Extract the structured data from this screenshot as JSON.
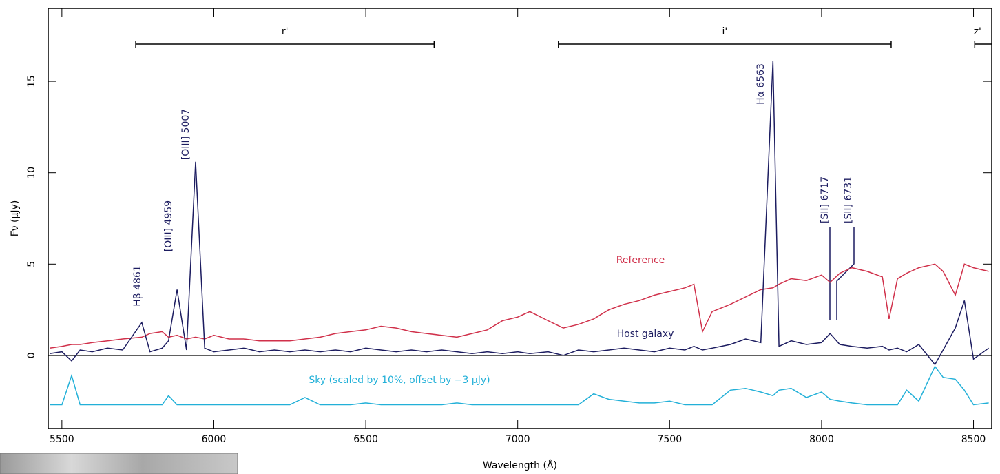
{
  "chart_data": {
    "type": "line",
    "x_label": "Wavelength (Å)",
    "y_label": "Fν (μJy)",
    "xlim": [
      5455,
      8560
    ],
    "ylim": [
      -4,
      19
    ],
    "xticks": [
      5500,
      6000,
      6500,
      7000,
      7500,
      8000,
      8500
    ],
    "yticks": [
      0,
      5,
      10,
      15
    ],
    "x": [
      5460,
      5500,
      5532,
      5560,
      5600,
      5650,
      5700,
      5763,
      5790,
      5830,
      5851,
      5879,
      5910,
      5940,
      5970,
      6000,
      6050,
      6100,
      6150,
      6200,
      6250,
      6300,
      6350,
      6400,
      6450,
      6500,
      6550,
      6600,
      6650,
      6700,
      6750,
      6800,
      6850,
      6900,
      6950,
      7000,
      7040,
      7100,
      7150,
      7200,
      7250,
      7300,
      7350,
      7400,
      7450,
      7500,
      7550,
      7580,
      7608,
      7640,
      7700,
      7750,
      7800,
      7840,
      7860,
      7900,
      7950,
      8000,
      8028,
      8060,
      8100,
      8150,
      8200,
      8222,
      8250,
      8280,
      8320,
      8373,
      8400,
      8440,
      8470,
      8500,
      8550
    ],
    "series": [
      {
        "name": "Reference",
        "color": "#d0304a",
        "values": [
          0.4,
          0.5,
          0.6,
          0.6,
          0.7,
          0.8,
          0.9,
          1.0,
          1.2,
          1.3,
          1.0,
          1.1,
          0.9,
          1.0,
          0.9,
          1.1,
          0.9,
          0.9,
          0.8,
          0.8,
          0.8,
          0.9,
          1.0,
          1.2,
          1.3,
          1.4,
          1.6,
          1.5,
          1.3,
          1.2,
          1.1,
          1.0,
          1.2,
          1.4,
          1.9,
          2.1,
          2.4,
          1.9,
          1.5,
          1.7,
          2.0,
          2.5,
          2.8,
          3.0,
          3.3,
          3.5,
          3.7,
          3.9,
          1.3,
          2.4,
          2.8,
          3.2,
          3.6,
          3.7,
          3.9,
          4.2,
          4.1,
          4.4,
          4.0,
          4.5,
          4.8,
          4.6,
          4.3,
          2.0,
          4.2,
          4.5,
          4.8,
          5.0,
          4.6,
          3.3,
          5.0,
          4.8,
          4.6
        ]
      },
      {
        "name": "Host galaxy",
        "color": "#1c1c60",
        "values": [
          0.1,
          0.2,
          -0.3,
          0.3,
          0.2,
          0.4,
          0.3,
          1.8,
          0.2,
          0.4,
          0.8,
          3.6,
          0.3,
          10.6,
          0.4,
          0.2,
          0.3,
          0.4,
          0.2,
          0.3,
          0.2,
          0.3,
          0.2,
          0.3,
          0.2,
          0.4,
          0.3,
          0.2,
          0.3,
          0.2,
          0.3,
          0.2,
          0.1,
          0.2,
          0.1,
          0.2,
          0.1,
          0.2,
          0.0,
          0.3,
          0.2,
          0.3,
          0.4,
          0.3,
          0.2,
          0.4,
          0.3,
          0.5,
          0.3,
          0.4,
          0.6,
          0.9,
          0.7,
          16.1,
          0.5,
          0.8,
          0.6,
          0.7,
          1.2,
          0.6,
          0.5,
          0.4,
          0.5,
          0.3,
          0.4,
          0.2,
          0.6,
          -0.5,
          0.3,
          1.5,
          3.0,
          -0.2,
          0.4
        ]
      },
      {
        "name": "Sky (scaled by 10%, offset by −3 μJy)",
        "color": "#22b0d8",
        "values": [
          -2.7,
          -2.7,
          -1.1,
          -2.7,
          -2.7,
          -2.7,
          -2.7,
          -2.7,
          -2.7,
          -2.7,
          -2.2,
          -2.7,
          -2.7,
          -2.7,
          -2.7,
          -2.7,
          -2.7,
          -2.7,
          -2.7,
          -2.7,
          -2.7,
          -2.3,
          -2.7,
          -2.7,
          -2.7,
          -2.6,
          -2.7,
          -2.7,
          -2.7,
          -2.7,
          -2.7,
          -2.6,
          -2.7,
          -2.7,
          -2.7,
          -2.7,
          -2.7,
          -2.7,
          -2.7,
          -2.7,
          -2.1,
          -2.4,
          -2.5,
          -2.6,
          -2.6,
          -2.5,
          -2.7,
          -2.7,
          -2.7,
          -2.7,
          -1.9,
          -1.8,
          -2.0,
          -2.2,
          -1.9,
          -1.8,
          -2.3,
          -2.0,
          -2.4,
          -2.5,
          -2.6,
          -2.7,
          -2.7,
          -2.7,
          -2.7,
          -1.9,
          -2.5,
          -0.6,
          -1.2,
          -1.3,
          -1.9,
          -2.7,
          -2.6
        ]
      }
    ],
    "bands": [
      {
        "name": "r'",
        "range": [
          5743,
          6725
        ]
      },
      {
        "name": "i'",
        "range": [
          7134,
          8229
        ]
      },
      {
        "name": "z'",
        "range": [
          8504,
          8560
        ]
      }
    ],
    "annotations": [
      "Hβ 4861",
      "[OIII] 4959",
      "[OIII] 5007",
      "Hα 6563",
      "[SII] 6717",
      "[SII] 6731"
    ]
  }
}
